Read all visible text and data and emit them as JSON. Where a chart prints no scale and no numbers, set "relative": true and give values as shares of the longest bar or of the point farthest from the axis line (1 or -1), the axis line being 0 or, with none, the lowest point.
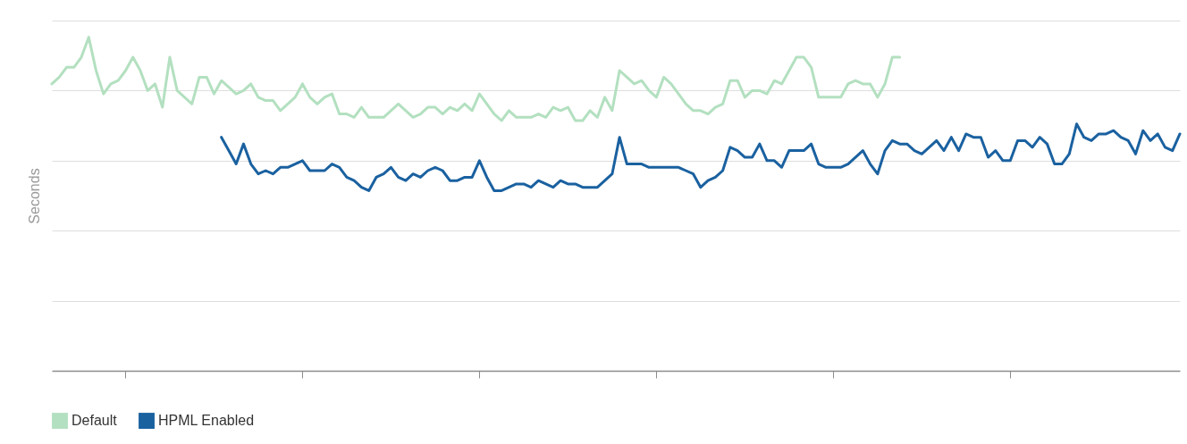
{
  "chart_data": {
    "type": "line",
    "relative": true,
    "ylabel": "Seconds",
    "grid": "y",
    "legend": "bottom left",
    "categories": [
      null,
      null,
      null,
      null,
      null,
      null,
      null,
      null,
      null,
      null,
      null,
      null,
      null,
      null,
      null,
      null,
      null,
      null,
      null,
      null,
      null,
      null,
      null,
      null,
      null,
      null,
      null,
      null,
      null,
      null,
      null,
      null,
      null,
      null,
      null,
      null,
      null,
      null,
      null,
      null,
      null,
      null,
      null,
      null,
      null,
      null,
      null,
      null,
      null,
      null,
      null,
      null,
      null,
      null,
      null,
      null,
      null,
      null,
      null,
      null,
      null,
      null,
      null,
      null,
      null,
      null,
      null,
      null,
      null,
      null,
      null,
      null,
      null,
      null,
      null,
      null,
      null,
      null,
      null,
      null,
      null,
      null,
      null,
      null,
      null,
      null,
      null,
      null,
      null,
      null,
      null,
      null,
      null,
      null,
      null,
      null,
      null,
      null,
      null,
      null,
      null,
      null,
      null,
      null,
      null,
      null,
      null,
      null,
      null,
      null,
      null,
      null,
      null,
      null,
      null,
      null,
      null,
      null,
      null,
      null,
      null,
      null,
      null,
      null,
      null,
      null,
      null,
      null,
      null,
      null,
      null,
      null,
      null,
      null,
      null,
      null,
      null,
      null,
      null,
      null,
      null,
      null,
      null,
      null,
      null,
      null,
      null,
      null,
      null,
      null,
      null,
      null,
      null,
      null
    ],
    "series": [
      {
        "name": "Default",
        "color": "#b3e0c0",
        "values": [
          0.86,
          0.88,
          0.91,
          0.91,
          0.94,
          1,
          0.9,
          0.83,
          0.86,
          0.87,
          0.9,
          0.94,
          0.9,
          0.84,
          0.86,
          0.79,
          0.94,
          0.84,
          0.82,
          0.8,
          0.88,
          0.88,
          0.83,
          0.87,
          0.85,
          0.83,
          0.84,
          0.86,
          0.82,
          0.81,
          0.81,
          0.78,
          0.8,
          0.82,
          0.86,
          0.82,
          0.8,
          0.82,
          0.83,
          0.77,
          0.77,
          0.76,
          0.79,
          0.76,
          0.76,
          0.76,
          0.78,
          0.8,
          0.78,
          0.76,
          0.77,
          0.79,
          0.79,
          0.77,
          0.79,
          0.78,
          0.8,
          0.78,
          0.83,
          0.8,
          0.77,
          0.75,
          0.78,
          0.76,
          0.76,
          0.76,
          0.77,
          0.76,
          0.79,
          0.78,
          0.79,
          0.75,
          0.75,
          0.78,
          0.76,
          0.82,
          0.78,
          0.9,
          0.88,
          0.86,
          0.87,
          0.84,
          0.82,
          0.88,
          0.86,
          0.83,
          0.8,
          0.78,
          0.78,
          0.77,
          0.79,
          0.8,
          0.87,
          0.87,
          0.82,
          0.84,
          0.84,
          0.83,
          0.87,
          0.86,
          0.9,
          0.94,
          0.94,
          0.91,
          0.82,
          0.82,
          0.82,
          0.82,
          0.86,
          0.87,
          0.86,
          0.86,
          0.82,
          0.86,
          0.94,
          0.94,
          null,
          null,
          null,
          null,
          null,
          null,
          null,
          null,
          null,
          null,
          null,
          null,
          null,
          null,
          null,
          null,
          null,
          null,
          null,
          null,
          null,
          null,
          null,
          null,
          null,
          null,
          null,
          null,
          null,
          null,
          null,
          null,
          null,
          null,
          null,
          null,
          null,
          null
        ]
      },
      {
        "name": "HPML Enabled",
        "color": "#1a61a0",
        "values": [
          null,
          null,
          null,
          null,
          null,
          null,
          null,
          null,
          null,
          null,
          null,
          null,
          null,
          null,
          null,
          null,
          null,
          null,
          null,
          null,
          null,
          null,
          null,
          0.7,
          0.66,
          0.62,
          0.68,
          0.62,
          0.59,
          0.6,
          0.59,
          0.61,
          0.61,
          0.62,
          0.63,
          0.6,
          0.6,
          0.6,
          0.62,
          0.61,
          0.58,
          0.57,
          0.55,
          0.54,
          0.58,
          0.59,
          0.61,
          0.58,
          0.57,
          0.59,
          0.58,
          0.6,
          0.61,
          0.6,
          0.57,
          0.57,
          0.58,
          0.58,
          0.63,
          0.58,
          0.54,
          0.54,
          0.55,
          0.56,
          0.56,
          0.55,
          0.57,
          0.56,
          0.55,
          0.57,
          0.56,
          0.56,
          0.55,
          0.55,
          0.55,
          0.57,
          0.59,
          0.7,
          0.62,
          0.62,
          0.62,
          0.61,
          0.61,
          0.61,
          0.61,
          0.61,
          0.6,
          0.59,
          0.55,
          0.57,
          0.58,
          0.6,
          0.67,
          0.66,
          0.64,
          0.64,
          0.68,
          0.63,
          0.63,
          0.61,
          0.66,
          0.66,
          0.66,
          0.68,
          0.62,
          0.61,
          0.61,
          0.61,
          0.62,
          0.64,
          0.66,
          0.62,
          0.59,
          0.66,
          0.69,
          0.68,
          0.68,
          0.66,
          0.65,
          0.67,
          0.69,
          0.66,
          0.7,
          0.66,
          0.71,
          0.7,
          0.7,
          0.64,
          0.66,
          0.63,
          0.63,
          0.69,
          0.69,
          0.67,
          0.7,
          0.68,
          0.62,
          0.62,
          0.65,
          0.74,
          0.7,
          0.69,
          0.71,
          0.71,
          0.72,
          0.7,
          0.69,
          0.65,
          0.72,
          0.69,
          0.71,
          0.67,
          0.66,
          0.71
        ]
      }
    ]
  }
}
